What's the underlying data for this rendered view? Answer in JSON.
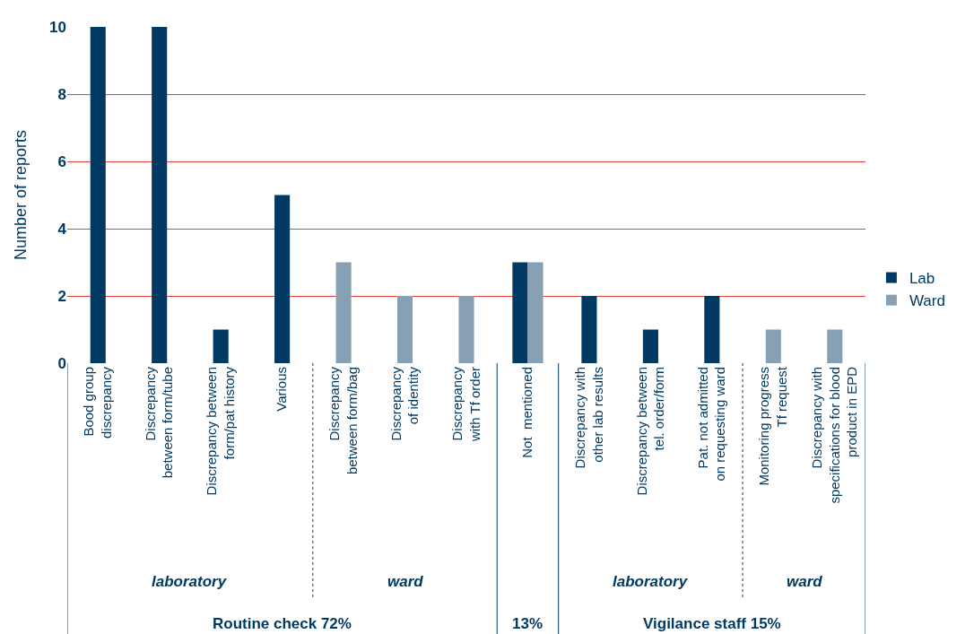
{
  "chart_data": {
    "type": "bar",
    "ylabel": "Number of reports",
    "categories": [
      "Bood group\ndiscrepancy",
      "Discrepancy\nbetween form/tube",
      "Discrepancy between\nform/pat history",
      "Various",
      "Discrepancy\nbetween form/bag",
      "Discrepancy\nof identity",
      "Discrepancy\nwith Tf order",
      "Not  mentioned",
      "Discrepancy with\nother lab results",
      "Discrepancy between\ntel. order/form",
      "Pat. not admitted\non requesting ward",
      "Monitoring progress\nTf request",
      "Discrepancy with\nspecifications for blood\nproduct in EPD"
    ],
    "series": [
      {
        "name": "Lab",
        "color": "#003a63",
        "values": [
          10,
          10,
          1,
          5,
          null,
          null,
          null,
          3,
          2,
          1,
          2,
          null,
          null
        ]
      },
      {
        "name": "Ward",
        "color": "#87a0b4",
        "values": [
          null,
          null,
          null,
          null,
          3,
          2,
          2,
          3,
          null,
          null,
          null,
          1,
          1
        ]
      }
    ],
    "ylim": [
      0,
      10
    ],
    "yticks": [
      0,
      2,
      4,
      6,
      8,
      10
    ],
    "grid": "y",
    "legend": "right",
    "annotations": [
      "laboratory",
      "ward",
      "Routine check 72%",
      "13%",
      "laboratory",
      "ward",
      "Vigilance staff 15%"
    ]
  }
}
